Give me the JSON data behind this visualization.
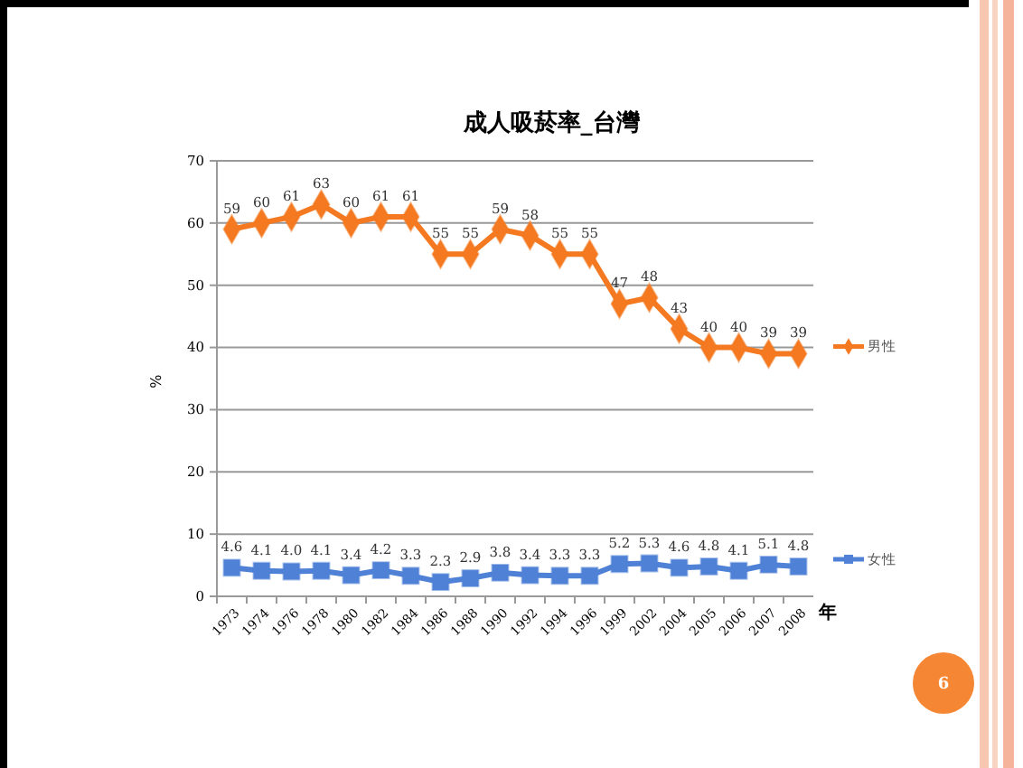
{
  "chart_data": {
    "type": "line",
    "title": "成人吸菸率_台灣",
    "xlabel": "年",
    "ylabel": "%",
    "categories": [
      "1973",
      "1974",
      "1976",
      "1978",
      "1980",
      "1982",
      "1984",
      "1986",
      "1988",
      "1990",
      "1992",
      "1994",
      "1996",
      "1999",
      "2002",
      "2004",
      "2005",
      "2006",
      "2007",
      "2008"
    ],
    "series": [
      {
        "name": "男性",
        "color": "#f47920",
        "marker": "diamond",
        "values": [
          59,
          60,
          61,
          63,
          60,
          61,
          61,
          55,
          55,
          59,
          58,
          55,
          55,
          47,
          48,
          43,
          40,
          40,
          39,
          39
        ],
        "value_labels": [
          "59",
          "60",
          "61",
          "63",
          "60",
          "61",
          "61",
          "55",
          "55",
          "59",
          "58",
          "55",
          "55",
          "47",
          "48",
          "43",
          "40",
          "40",
          "39",
          "39"
        ]
      },
      {
        "name": "女性",
        "color": "#4f81d6",
        "marker": "square",
        "values": [
          4.6,
          4.1,
          4.0,
          4.1,
          3.4,
          4.2,
          3.3,
          2.3,
          2.9,
          3.8,
          3.4,
          3.3,
          3.3,
          5.2,
          5.3,
          4.6,
          4.8,
          4.1,
          5.1,
          4.8
        ],
        "value_labels": [
          "4.6",
          "4.1",
          "4.0",
          "4.1",
          "3.4",
          "4.2",
          "3.3",
          "2.3",
          "2.9",
          "3.8",
          "3.4",
          "3.3",
          "3.3",
          "5.2",
          "5.3",
          "4.6",
          "4.8",
          "4.1",
          "5.1",
          "4.8"
        ]
      }
    ],
    "ylim": [
      0,
      70
    ],
    "yticks": [
      0,
      10,
      20,
      30,
      40,
      50,
      60,
      70
    ],
    "grid": "y",
    "legend": "right",
    "annotations": [
      "6"
    ]
  }
}
